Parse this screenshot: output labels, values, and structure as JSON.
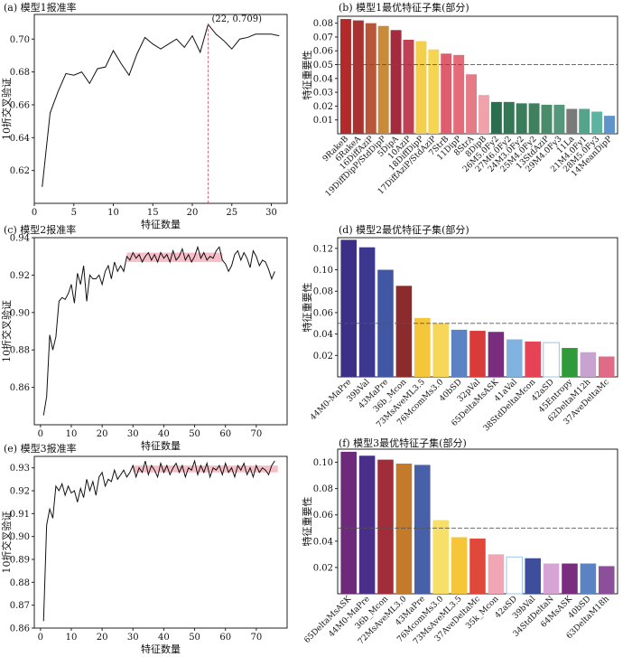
{
  "chart_data": [
    {
      "id": "a",
      "type": "line",
      "title": "(a) 模型1报准率",
      "xlabel": "特征数量",
      "ylabel": "10折交叉验证",
      "xlim": [
        0,
        32
      ],
      "ylim": [
        0.6,
        0.715
      ],
      "xticks": [
        0,
        5,
        10,
        15,
        20,
        25,
        30
      ],
      "yticks": [
        0.62,
        0.64,
        0.66,
        0.68,
        0.7
      ],
      "ytick_labels": [
        "0.62",
        "0.64",
        "0.66",
        "0.68",
        "0.70"
      ],
      "x": [
        1,
        2,
        3,
        4,
        5,
        6,
        7,
        8,
        9,
        10,
        11,
        12,
        13,
        14,
        15,
        16,
        17,
        18,
        19,
        20,
        21,
        22,
        23,
        24,
        25,
        26,
        27,
        28,
        29,
        30,
        31
      ],
      "y": [
        0.61,
        0.655,
        0.668,
        0.679,
        0.678,
        0.68,
        0.673,
        0.682,
        0.683,
        0.693,
        0.685,
        0.678,
        0.691,
        0.701,
        0.697,
        0.694,
        0.697,
        0.7,
        0.695,
        0.702,
        0.692,
        0.709,
        0.703,
        0.699,
        0.694,
        0.7,
        0.701,
        0.703,
        0.703,
        0.703,
        0.702
      ],
      "annotation": {
        "x": 22,
        "y": 0.709,
        "text": "(22, 0.709)"
      }
    },
    {
      "id": "b",
      "type": "bar",
      "title": "(b) 模型1最优特征子集(部分)",
      "ylabel": "特征重要性",
      "ylim": [
        0,
        0.085
      ],
      "yticks": [
        0.01,
        0.02,
        0.03,
        0.04,
        0.05,
        0.06,
        0.07,
        0.08
      ],
      "ytick_labels": [
        "0.01",
        "0.02",
        "0.03",
        "0.04",
        "0.05",
        "0.06",
        "0.07",
        "0.08"
      ],
      "threshold": 0.05,
      "categories": [
        "9RakeB",
        "6RakeA",
        "16DiffAziP",
        "19DiffDipP/StdDipP",
        "5DipA",
        "10AziP",
        "18DiffDipP",
        "17DiffAziP/StdAziP",
        "7StrB",
        "11DipP",
        "8StrA",
        "8DipB",
        "26M5.0Fy2",
        "27M6.0Fy2",
        "24M3.0Fy2",
        "25M4.0Fy2",
        "13StdAziP",
        "29M4.0Fy3",
        "11La",
        "21M4.0Fy1",
        "28M5.0Fy3",
        "14MeanDipP"
      ],
      "values": [
        0.083,
        0.082,
        0.08,
        0.078,
        0.075,
        0.068,
        0.067,
        0.061,
        0.058,
        0.057,
        0.043,
        0.028,
        0.023,
        0.023,
        0.022,
        0.022,
        0.021,
        0.021,
        0.018,
        0.018,
        0.016,
        0.013
      ],
      "colors": [
        "#b22a2a",
        "#a83232",
        "#b8563a",
        "#c98a3a",
        "#a42b3d",
        "#c04055",
        "#f3cf4c",
        "#f5d552",
        "#e05d6d",
        "#e56b78",
        "#e57b86",
        "#f0a2ab",
        "#2b6e4f",
        "#347755",
        "#3b7d5a",
        "#3f805e",
        "#4a8c6a",
        "#55977a",
        "#7a7a7a",
        "#53a48a",
        "#5bb3a0",
        "#5f93cc"
      ]
    },
    {
      "id": "c",
      "type": "line",
      "title": "(c) 模型2报准率",
      "xlabel": "特征数量",
      "ylabel": "10折交叉验证",
      "xlim": [
        -2,
        80
      ],
      "ylim": [
        0.84,
        0.94
      ],
      "xticks": [
        0,
        10,
        20,
        30,
        40,
        50,
        60,
        70
      ],
      "yticks": [
        0.86,
        0.88,
        0.9,
        0.92,
        0.94
      ],
      "ytick_labels": [
        "0.86",
        "0.88",
        "0.90",
        "0.92",
        "0.94"
      ],
      "band": {
        "x": [
          28,
          59
        ],
        "y": [
          0.927,
          0.932
        ]
      },
      "x": [
        1,
        2,
        3,
        4,
        5,
        6,
        7,
        8,
        9,
        10,
        11,
        12,
        13,
        14,
        15,
        16,
        17,
        18,
        19,
        20,
        21,
        22,
        23,
        24,
        25,
        26,
        27,
        28,
        29,
        30,
        31,
        32,
        33,
        34,
        35,
        36,
        37,
        38,
        39,
        40,
        41,
        42,
        43,
        44,
        45,
        46,
        47,
        48,
        49,
        50,
        51,
        52,
        53,
        54,
        55,
        56,
        57,
        58,
        59,
        60,
        61,
        62,
        63,
        64,
        65,
        66,
        67,
        68,
        69,
        70,
        71,
        72,
        73,
        74,
        75,
        76
      ],
      "y": [
        0.845,
        0.855,
        0.888,
        0.88,
        0.887,
        0.906,
        0.908,
        0.907,
        0.91,
        0.915,
        0.905,
        0.921,
        0.915,
        0.925,
        0.906,
        0.92,
        0.918,
        0.918,
        0.92,
        0.915,
        0.922,
        0.925,
        0.918,
        0.927,
        0.922,
        0.925,
        0.922,
        0.93,
        0.928,
        0.932,
        0.929,
        0.931,
        0.927,
        0.93,
        0.932,
        0.928,
        0.931,
        0.927,
        0.932,
        0.929,
        0.931,
        0.927,
        0.933,
        0.928,
        0.93,
        0.934,
        0.928,
        0.931,
        0.927,
        0.93,
        0.935,
        0.929,
        0.932,
        0.928,
        0.93,
        0.929,
        0.933,
        0.935,
        0.928,
        0.926,
        0.922,
        0.925,
        0.931,
        0.933,
        0.928,
        0.932,
        0.929,
        0.924,
        0.933,
        0.93,
        0.925,
        0.928,
        0.927,
        0.923,
        0.918,
        0.922
      ]
    },
    {
      "id": "d",
      "type": "bar",
      "title": "(d) 模型2最优特征子集(部分)",
      "ylabel": "特征重要性",
      "ylim": [
        0,
        0.13
      ],
      "yticks": [
        0.02,
        0.04,
        0.06,
        0.08,
        0.1,
        0.12
      ],
      "ytick_labels": [
        "0.02",
        "0.04",
        "0.06",
        "0.08",
        "0.10",
        "0.12"
      ],
      "threshold": 0.05,
      "categories": [
        "44M0-MaPre",
        "39bVal",
        "43MaPre",
        "36b_Mcon",
        "73MsAveML3.5",
        "76McomMs3.0",
        "40bSD",
        "32pVal",
        "65DeltaMsASK",
        "41aVal",
        "38StdDeltaMcon",
        "42aSD",
        "45Entropy",
        "62DeltaM12h",
        "37AveDeltaMc"
      ],
      "values": [
        0.128,
        0.121,
        0.1,
        0.085,
        0.055,
        0.05,
        0.044,
        0.043,
        0.042,
        0.035,
        0.033,
        0.032,
        0.027,
        0.023,
        0.019
      ],
      "colors": [
        "#3b2f86",
        "#3c3890",
        "#4257a3",
        "#8b2b2b",
        "#f5c63a",
        "#f7d75a",
        "#5b83c3",
        "#d93a3a",
        "#7a2d7e",
        "#7fb2df",
        "#e64356",
        "#ffffff",
        "#2f9a3a",
        "#c9a3cf",
        "#e06b86"
      ],
      "outline": [
        false,
        false,
        false,
        false,
        false,
        false,
        false,
        false,
        false,
        false,
        false,
        true,
        false,
        false,
        false
      ]
    },
    {
      "id": "e",
      "type": "line",
      "title": "(e) 模型3报准率",
      "xlabel": "特征数量",
      "ylabel": "10折交叉验证",
      "xlim": [
        -2,
        80
      ],
      "ylim": [
        0.86,
        0.935
      ],
      "xticks": [
        0,
        10,
        20,
        30,
        40,
        50,
        60,
        70
      ],
      "yticks": [
        0.86,
        0.87,
        0.88,
        0.89,
        0.9,
        0.91,
        0.92,
        0.93
      ],
      "ytick_labels": [
        "0.86",
        "0.87",
        "0.88",
        "0.89",
        "0.90",
        "0.91",
        "0.92",
        "0.93"
      ],
      "band": {
        "x": [
          30,
          77
        ],
        "y": [
          0.928,
          0.931
        ]
      },
      "x": [
        1,
        2,
        3,
        4,
        5,
        6,
        7,
        8,
        9,
        10,
        11,
        12,
        13,
        14,
        15,
        16,
        17,
        18,
        19,
        20,
        21,
        22,
        23,
        24,
        25,
        26,
        27,
        28,
        29,
        30,
        31,
        32,
        33,
        34,
        35,
        36,
        37,
        38,
        39,
        40,
        41,
        42,
        43,
        44,
        45,
        46,
        47,
        48,
        49,
        50,
        51,
        52,
        53,
        54,
        55,
        56,
        57,
        58,
        59,
        60,
        61,
        62,
        63,
        64,
        65,
        66,
        67,
        68,
        69,
        70,
        71,
        72,
        73,
        74,
        75,
        76
      ],
      "y": [
        0.863,
        0.905,
        0.912,
        0.908,
        0.922,
        0.92,
        0.923,
        0.918,
        0.922,
        0.919,
        0.92,
        0.915,
        0.921,
        0.917,
        0.925,
        0.92,
        0.924,
        0.918,
        0.926,
        0.928,
        0.922,
        0.925,
        0.924,
        0.929,
        0.925,
        0.927,
        0.929,
        0.926,
        0.928,
        0.931,
        0.926,
        0.93,
        0.928,
        0.933,
        0.927,
        0.931,
        0.929,
        0.926,
        0.932,
        0.928,
        0.931,
        0.927,
        0.93,
        0.932,
        0.928,
        0.931,
        0.926,
        0.93,
        0.929,
        0.933,
        0.927,
        0.931,
        0.928,
        0.932,
        0.926,
        0.93,
        0.929,
        0.931,
        0.927,
        0.932,
        0.928,
        0.93,
        0.926,
        0.931,
        0.929,
        0.932,
        0.927,
        0.93,
        0.926,
        0.931,
        0.928,
        0.93,
        0.929,
        0.927,
        0.931,
        0.933
      ]
    },
    {
      "id": "f",
      "type": "bar",
      "title": "(f) 模型3最优特征子集(部分)",
      "ylabel": "特征重要性",
      "ylim": [
        0,
        0.11
      ],
      "yticks": [
        0.02,
        0.04,
        0.06,
        0.08,
        0.1
      ],
      "ytick_labels": [
        "0.02",
        "0.04",
        "0.06",
        "0.08",
        "0.10"
      ],
      "threshold": 0.05,
      "categories": [
        "65DeltaMsASK",
        "44M0-MaPre",
        "36b_Mcon",
        "72MsAveML3.0",
        "43MaPre",
        "76McomMs3.0",
        "73MsAveML3.5",
        "37AveDeltaMc",
        "35k_Mcon",
        "42aSD",
        "39bVal",
        "34StdDeltaN",
        "64MsASK",
        "40bSD",
        "63DeltaM18h"
      ],
      "values": [
        0.108,
        0.105,
        0.102,
        0.099,
        0.098,
        0.056,
        0.043,
        0.042,
        0.03,
        0.028,
        0.027,
        0.023,
        0.023,
        0.023,
        0.021
      ],
      "colors": [
        "#6e2a7a",
        "#4a2f8a",
        "#a12d3a",
        "#c37a2a",
        "#4760a8",
        "#f7e06a",
        "#f5c63a",
        "#e0483a",
        "#f0a6b5",
        "#ffffff",
        "#3d4f9a",
        "#d6a5d6",
        "#7a2d7e",
        "#5b83c3",
        "#8e4f9a"
      ],
      "outline": [
        false,
        false,
        false,
        false,
        false,
        false,
        false,
        false,
        false,
        true,
        false,
        false,
        false,
        false,
        false
      ]
    }
  ]
}
